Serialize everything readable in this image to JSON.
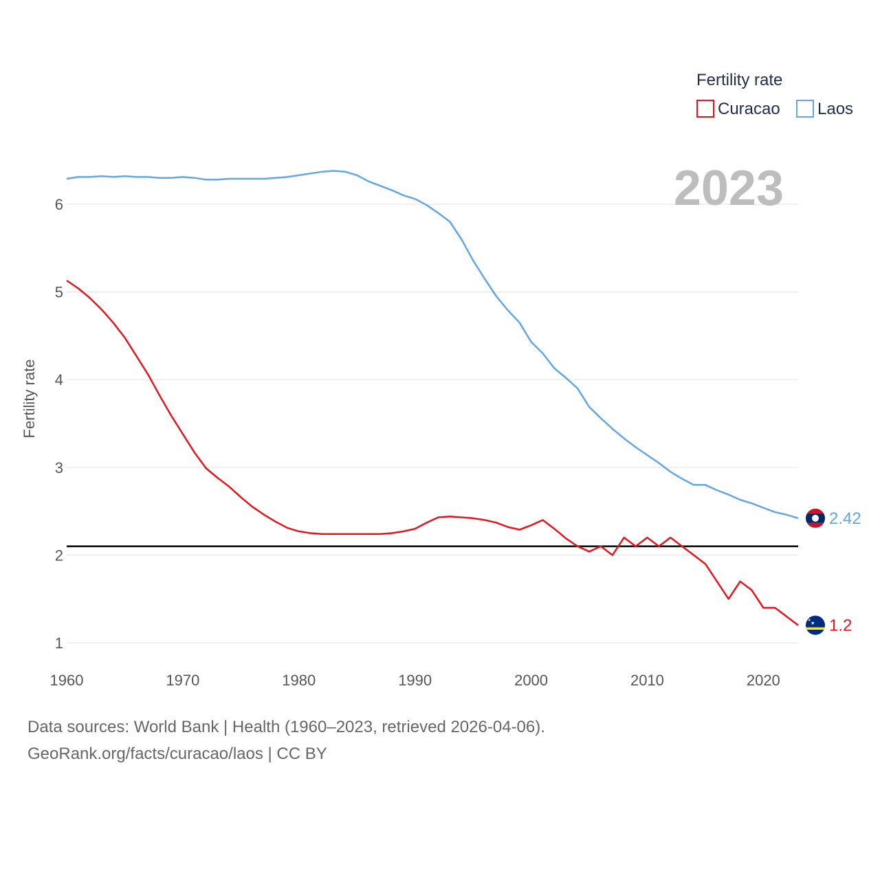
{
  "chart_data": {
    "type": "line",
    "title": "",
    "ylabel": "Fertility rate",
    "xlabel": "",
    "year_display": "2023",
    "xlim": [
      1960,
      2023
    ],
    "ylim": [
      0.8,
      6.8
    ],
    "x_ticks": [
      1960,
      1970,
      1980,
      1990,
      2000,
      2010,
      2020
    ],
    "x_tick_labels": [
      "1960",
      "1970",
      "1980",
      "1990",
      "2000",
      "2010",
      "2020"
    ],
    "y_ticks": [
      1,
      2,
      3,
      4,
      5,
      6
    ],
    "y_tick_labels": [
      "1",
      "2",
      "3",
      "4",
      "5",
      "6"
    ],
    "reference_line": {
      "y": 2.1,
      "color": "#000000"
    },
    "legend": {
      "title": "Fertility rate",
      "position": "top-right"
    },
    "x": [
      1960,
      1961,
      1962,
      1963,
      1964,
      1965,
      1966,
      1967,
      1968,
      1969,
      1970,
      1971,
      1972,
      1973,
      1974,
      1975,
      1976,
      1977,
      1978,
      1979,
      1980,
      1981,
      1982,
      1983,
      1984,
      1985,
      1986,
      1987,
      1988,
      1989,
      1990,
      1991,
      1992,
      1993,
      1994,
      1995,
      1996,
      1997,
      1998,
      1999,
      2000,
      2001,
      2002,
      2003,
      2004,
      2005,
      2006,
      2007,
      2008,
      2009,
      2010,
      2011,
      2012,
      2013,
      2014,
      2015,
      2016,
      2017,
      2018,
      2019,
      2020,
      2021,
      2022,
      2023
    ],
    "series": [
      {
        "name": "Curacao",
        "color": "#e8141b",
        "end_label": "1.2",
        "flag": "curacao-flag-icon",
        "values": [
          5.13,
          5.04,
          4.93,
          4.8,
          4.65,
          4.48,
          4.27,
          4.06,
          3.82,
          3.59,
          3.38,
          3.17,
          2.99,
          2.88,
          2.78,
          2.66,
          2.55,
          2.46,
          2.38,
          2.31,
          2.27,
          2.25,
          2.24,
          2.24,
          2.24,
          2.24,
          2.24,
          2.24,
          2.25,
          2.27,
          2.3,
          2.37,
          2.43,
          2.44,
          2.43,
          2.42,
          2.4,
          2.37,
          2.32,
          2.29,
          2.34,
          2.4,
          2.3,
          2.19,
          2.1,
          2.04,
          2.1,
          2.0,
          2.2,
          2.1,
          2.2,
          2.1,
          2.2,
          2.1,
          2.0,
          1.9,
          1.7,
          1.5,
          1.7,
          1.6,
          1.4,
          1.4,
          1.3,
          1.2
        ]
      },
      {
        "name": "Laos",
        "color": "#62a6e8",
        "end_label": "2.42",
        "flag": "laos-flag-icon",
        "values": [
          6.29,
          6.31,
          6.31,
          6.32,
          6.31,
          6.32,
          6.31,
          6.31,
          6.3,
          6.3,
          6.31,
          6.3,
          6.28,
          6.28,
          6.29,
          6.29,
          6.29,
          6.29,
          6.3,
          6.31,
          6.33,
          6.35,
          6.37,
          6.38,
          6.37,
          6.33,
          6.26,
          6.21,
          6.16,
          6.1,
          6.06,
          5.99,
          5.9,
          5.8,
          5.6,
          5.36,
          5.15,
          4.95,
          4.79,
          4.65,
          4.43,
          4.3,
          4.13,
          4.02,
          3.9,
          3.69,
          3.56,
          3.44,
          3.33,
          3.23,
          3.14,
          3.05,
          2.95,
          2.87,
          2.8,
          2.8,
          2.74,
          2.69,
          2.63,
          2.59,
          2.54,
          2.49,
          2.46,
          2.42
        ]
      }
    ]
  },
  "footer": {
    "line1": "Data sources: World Bank | Health (1960–2023, retrieved 2026-04-06).",
    "line2": "GeoRank.org/facts/curacao/laos | CC BY"
  }
}
